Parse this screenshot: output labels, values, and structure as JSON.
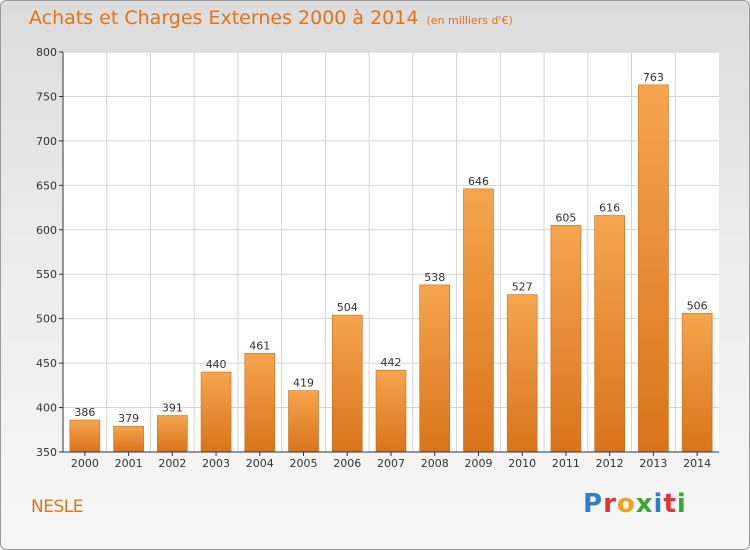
{
  "header": {
    "title": "Achats et Charges Externes 2000 à 2014",
    "subtitle": "(en milliers d'€)"
  },
  "footer": {
    "location": "NESLE",
    "logo": "Proxiti",
    "logo_colors": [
      "#2f7fc8",
      "#e8302f",
      "#f0a020",
      "#3aa635",
      "#2f7fc8",
      "#e8302f",
      "#3aa635"
    ]
  },
  "colors": {
    "bar_top": "#f5a54f",
    "bar_bottom": "#d9741a",
    "accent": "#e0731a",
    "grid": "#d4d4d4",
    "axis": "#333333"
  },
  "chart_data": {
    "type": "bar",
    "categories": [
      "2000",
      "2001",
      "2002",
      "2003",
      "2004",
      "2005",
      "2006",
      "2007",
      "2008",
      "2009",
      "2010",
      "2011",
      "2012",
      "2013",
      "2014"
    ],
    "values": [
      386,
      379,
      391,
      440,
      461,
      419,
      504,
      442,
      538,
      646,
      527,
      605,
      616,
      763,
      506
    ],
    "ylim": [
      350,
      800
    ],
    "yticks": [
      350,
      400,
      450,
      500,
      550,
      600,
      650,
      700,
      750,
      800
    ],
    "grid": true,
    "data_labels": true
  }
}
